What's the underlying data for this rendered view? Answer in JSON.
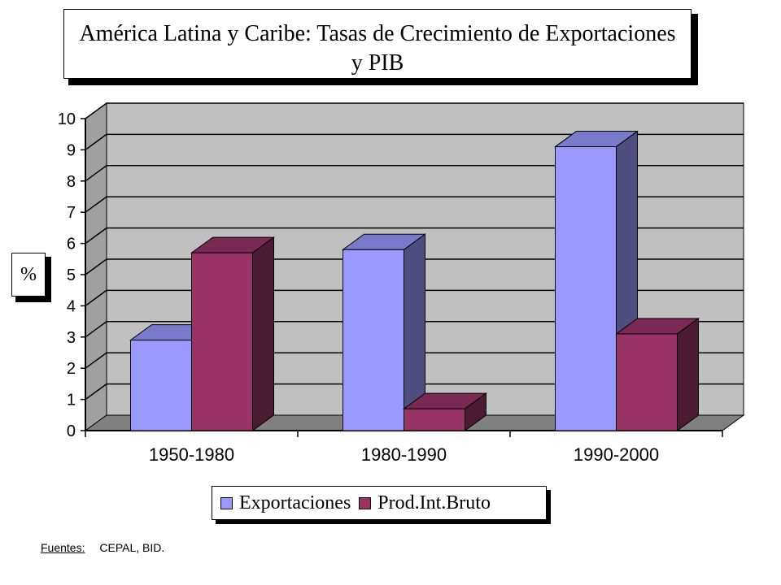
{
  "title": {
    "line1": "América Latina y Caribe: Tasas de Crecimiento de Exportaciones",
    "line2": "y PIB"
  },
  "source": {
    "label": "Fuentes:",
    "text": "CEPAL, BID."
  },
  "colors": {
    "exportaciones": "#9999ff",
    "pib": "#993366",
    "wall": "#c0c0c0",
    "floor": "#808080"
  },
  "chart_data": {
    "type": "bar",
    "categories": [
      "1950-1980",
      "1980-1990",
      "1990-2000"
    ],
    "series": [
      {
        "name": "Exportaciones",
        "values": [
          2.9,
          5.8,
          9.1
        ]
      },
      {
        "name": "Prod.Int.Bruto",
        "values": [
          5.7,
          0.7,
          3.1
        ]
      }
    ],
    "ylabel": "%",
    "ylim": [
      0,
      10
    ],
    "yticks": [
      0,
      1,
      2,
      3,
      4,
      5,
      6,
      7,
      8,
      9,
      10
    ],
    "legend_position": "bottom",
    "grid": true,
    "three_d": true
  }
}
